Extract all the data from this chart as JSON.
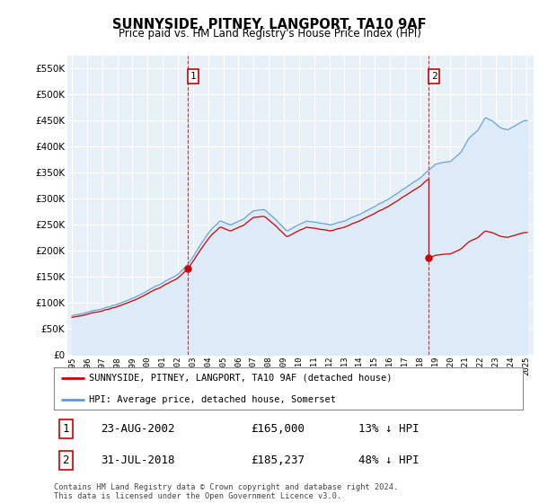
{
  "title": "SUNNYSIDE, PITNEY, LANGPORT, TA10 9AF",
  "subtitle": "Price paid vs. HM Land Registry's House Price Index (HPI)",
  "ylim": [
    0,
    575000
  ],
  "yticks": [
    0,
    50000,
    100000,
    150000,
    200000,
    250000,
    300000,
    350000,
    400000,
    450000,
    500000,
    550000
  ],
  "xlim_start": 1994.7,
  "xlim_end": 2025.5,
  "hpi_color": "#5b9bd5",
  "hpi_fill_color": "#ddeaf7",
  "price_color": "#cc0000",
  "vline_color": "#cc0000",
  "t1_year": 2002.645,
  "t1_price": 165000,
  "t2_year": 2018.583,
  "t2_price": 185237,
  "annotation1_label": "1",
  "annotation2_label": "2",
  "legend_entry1": "SUNNYSIDE, PITNEY, LANGPORT, TA10 9AF (detached house)",
  "legend_entry2": "HPI: Average price, detached house, Somerset",
  "table_row1_num": "1",
  "table_row1_date": "23-AUG-2002",
  "table_row1_price": "£165,000",
  "table_row1_hpi": "13% ↓ HPI",
  "table_row2_num": "2",
  "table_row2_date": "31-JUL-2018",
  "table_row2_price": "£185,237",
  "table_row2_hpi": "48% ↓ HPI",
  "footnote": "Contains HM Land Registry data © Crown copyright and database right 2024.\nThis data is licensed under the Open Government Licence v3.0.",
  "bg_color": "#ffffff",
  "plot_bg_color": "#e8f0f8",
  "grid_color": "#ffffff"
}
